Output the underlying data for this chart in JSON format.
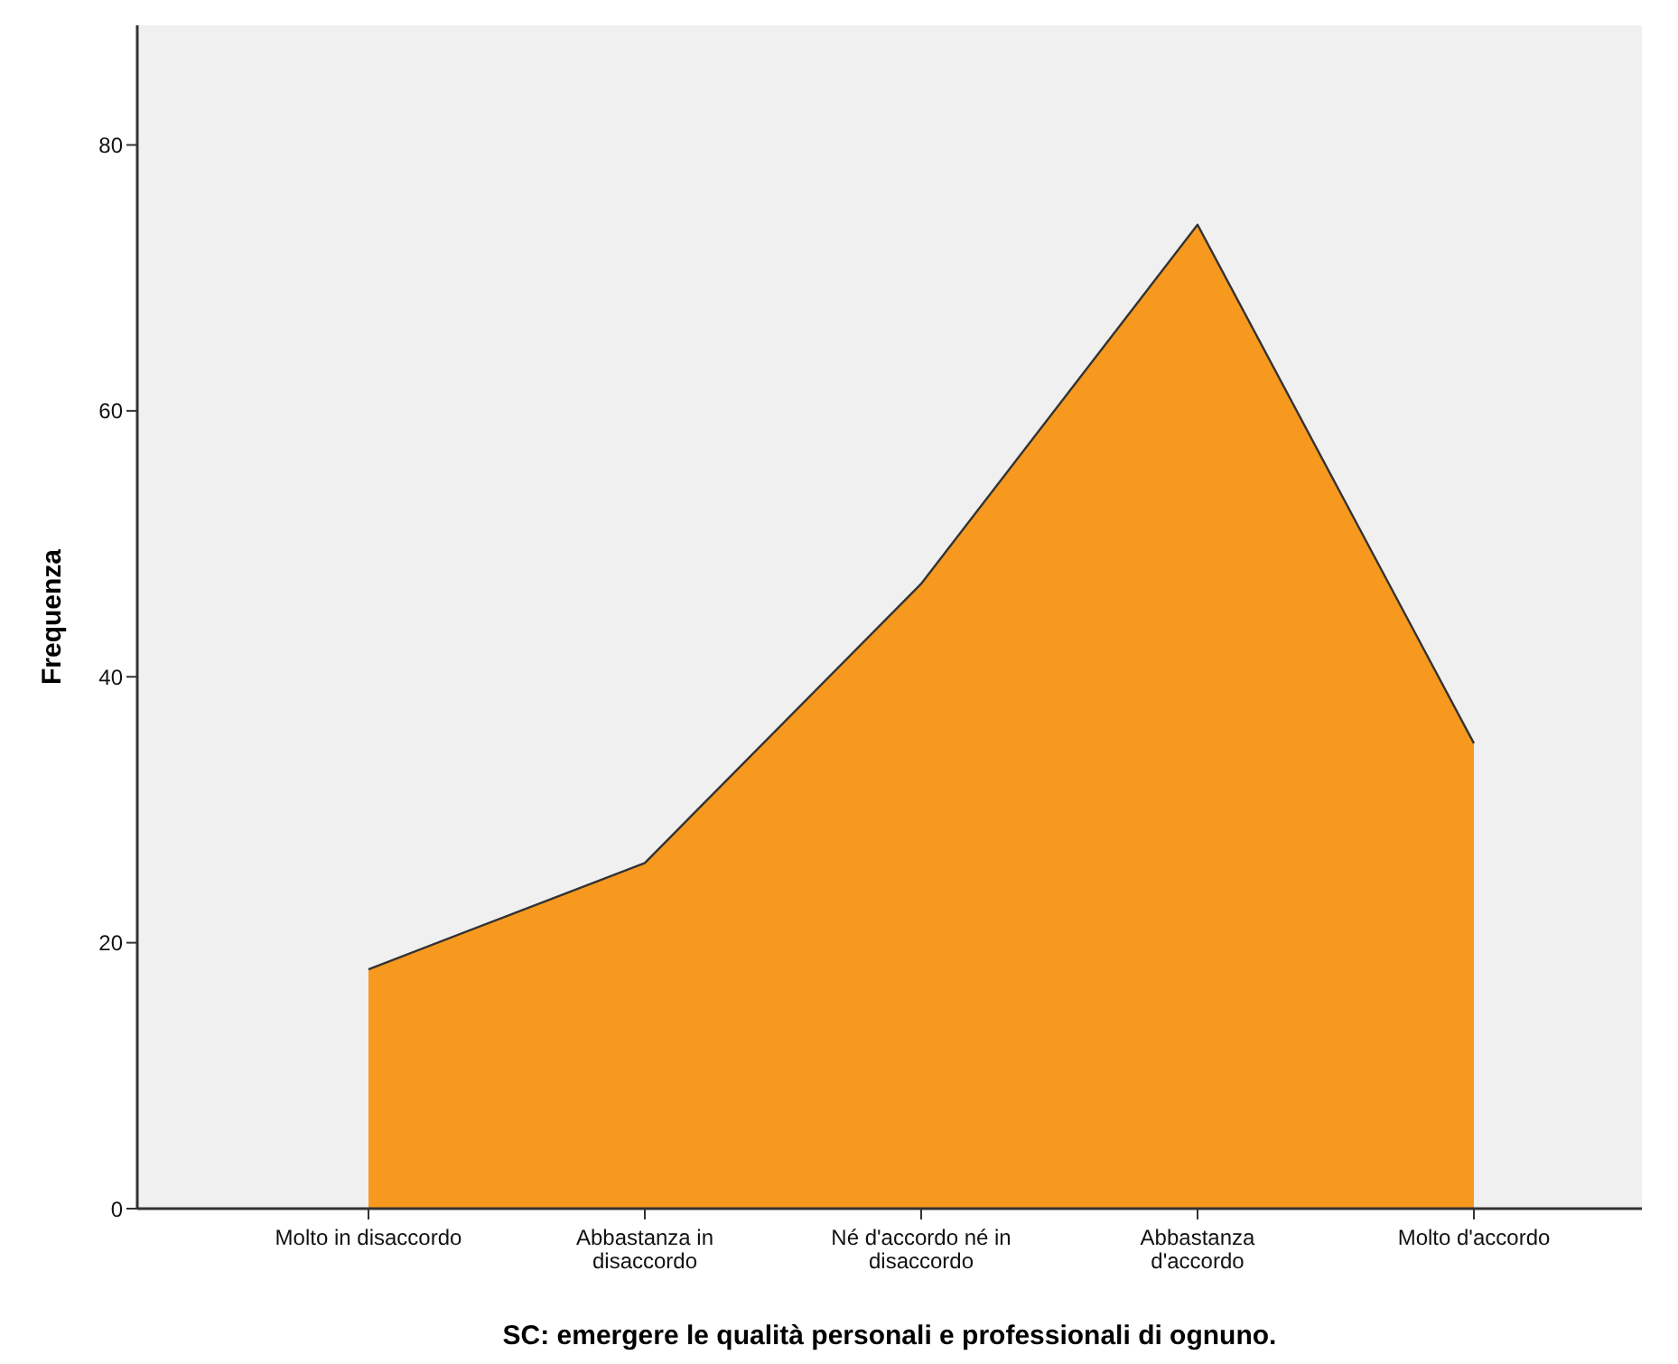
{
  "chart_data": {
    "type": "area",
    "xlabel": "SC: emergere le qualità personali e professionali di ognuno.",
    "ylabel": "Frequenza",
    "categories": [
      "Molto in disaccordo",
      "Abbastanza in disaccordo",
      "Né d'accordo né in disaccordo",
      "Abbastanza d'accordo",
      "Molto d'accordo"
    ],
    "values": [
      18,
      26,
      47,
      74,
      35
    ],
    "color": "#f7991f",
    "ylim": [
      0,
      89
    ],
    "yticks": [
      0,
      20,
      40,
      60,
      80
    ],
    "grid": false
  }
}
